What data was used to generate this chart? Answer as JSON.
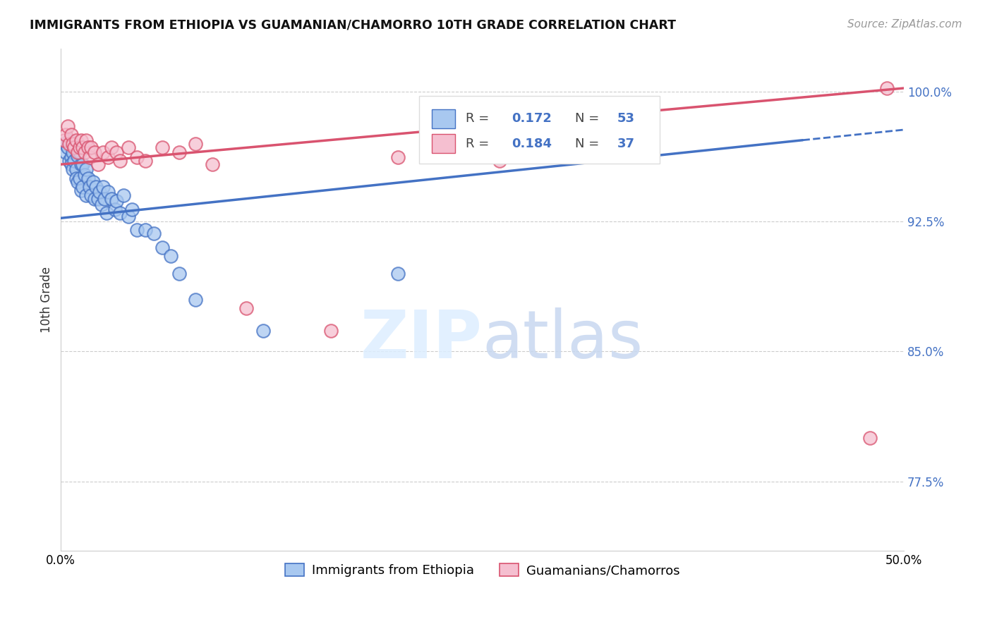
{
  "title": "IMMIGRANTS FROM ETHIOPIA VS GUAMANIAN/CHAMORRO 10TH GRADE CORRELATION CHART",
  "source": "Source: ZipAtlas.com",
  "ylabel": "10th Grade",
  "yticks": [
    0.775,
    0.85,
    0.925,
    1.0
  ],
  "ytick_labels": [
    "77.5%",
    "85.0%",
    "92.5%",
    "100.0%"
  ],
  "xlim": [
    0.0,
    0.5
  ],
  "ylim": [
    0.735,
    1.025
  ],
  "legend_label1": "Immigrants from Ethiopia",
  "legend_label2": "Guamanians/Chamorros",
  "blue_color": "#a8c8f0",
  "pink_color": "#f5bfd0",
  "trend_blue": "#4472c4",
  "trend_pink": "#d9536f",
  "blue_scatter_x": [
    0.002,
    0.003,
    0.004,
    0.005,
    0.005,
    0.006,
    0.006,
    0.007,
    0.007,
    0.008,
    0.009,
    0.009,
    0.01,
    0.01,
    0.011,
    0.011,
    0.012,
    0.012,
    0.013,
    0.013,
    0.014,
    0.015,
    0.015,
    0.016,
    0.017,
    0.018,
    0.019,
    0.02,
    0.021,
    0.022,
    0.023,
    0.024,
    0.025,
    0.026,
    0.027,
    0.028,
    0.03,
    0.032,
    0.033,
    0.035,
    0.037,
    0.04,
    0.042,
    0.045,
    0.05,
    0.055,
    0.06,
    0.065,
    0.07,
    0.08,
    0.12,
    0.2,
    0.31
  ],
  "blue_scatter_y": [
    0.97,
    0.965,
    0.968,
    0.96,
    0.972,
    0.962,
    0.958,
    0.965,
    0.955,
    0.96,
    0.955,
    0.95,
    0.963,
    0.948,
    0.965,
    0.95,
    0.958,
    0.943,
    0.958,
    0.945,
    0.952,
    0.955,
    0.94,
    0.95,
    0.945,
    0.94,
    0.948,
    0.938,
    0.945,
    0.938,
    0.942,
    0.935,
    0.945,
    0.938,
    0.93,
    0.942,
    0.938,
    0.932,
    0.937,
    0.93,
    0.94,
    0.928,
    0.932,
    0.92,
    0.92,
    0.918,
    0.91,
    0.905,
    0.895,
    0.88,
    0.862,
    0.895,
    0.985
  ],
  "pink_scatter_x": [
    0.002,
    0.003,
    0.004,
    0.005,
    0.006,
    0.007,
    0.008,
    0.009,
    0.01,
    0.011,
    0.012,
    0.013,
    0.014,
    0.015,
    0.016,
    0.017,
    0.018,
    0.02,
    0.022,
    0.025,
    0.028,
    0.03,
    0.033,
    0.035,
    0.04,
    0.045,
    0.05,
    0.06,
    0.07,
    0.08,
    0.09,
    0.11,
    0.16,
    0.2,
    0.26,
    0.48,
    0.49
  ],
  "pink_scatter_y": [
    0.972,
    0.975,
    0.98,
    0.97,
    0.975,
    0.97,
    0.968,
    0.972,
    0.965,
    0.968,
    0.972,
    0.968,
    0.965,
    0.972,
    0.968,
    0.962,
    0.968,
    0.965,
    0.958,
    0.965,
    0.962,
    0.968,
    0.965,
    0.96,
    0.968,
    0.962,
    0.96,
    0.968,
    0.965,
    0.97,
    0.958,
    0.875,
    0.862,
    0.962,
    0.96,
    0.8,
    1.002
  ],
  "blue_line_x": [
    0.0,
    0.44
  ],
  "blue_line_y": [
    0.927,
    0.972
  ],
  "dash_line_x": [
    0.44,
    0.5
  ],
  "dash_line_y": [
    0.972,
    0.978
  ],
  "pink_line_x": [
    0.0,
    0.5
  ],
  "pink_line_y": [
    0.958,
    1.002
  ]
}
